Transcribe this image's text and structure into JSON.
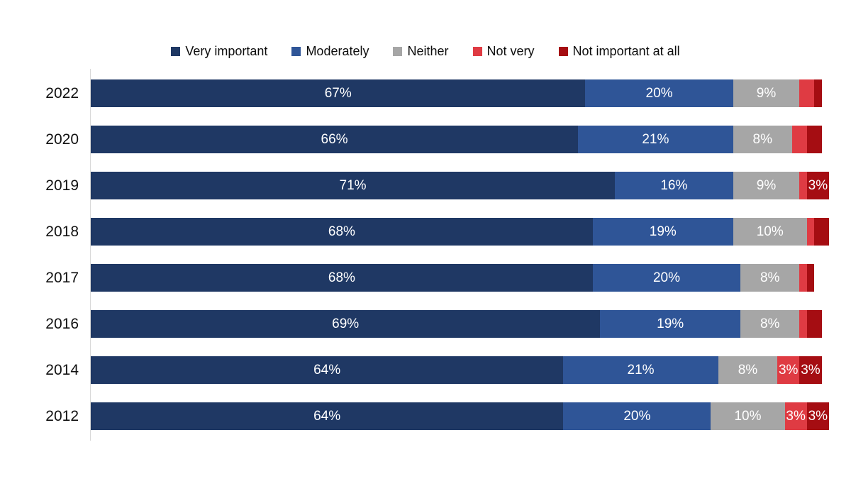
{
  "chart_data": {
    "type": "bar",
    "variant": "horizontal-stacked-percent",
    "title": "",
    "categories": [
      "2022",
      "2020",
      "2019",
      "2018",
      "2017",
      "2016",
      "2014",
      "2012"
    ],
    "series": [
      {
        "name": "Very important",
        "color": "#1F3864",
        "values": [
          67,
          66,
          71,
          68,
          68,
          69,
          64,
          64
        ]
      },
      {
        "name": "Moderately",
        "color": "#2F5597",
        "values": [
          20,
          21,
          16,
          19,
          20,
          19,
          21,
          20
        ]
      },
      {
        "name": "Neither",
        "color": "#A6A6A6",
        "values": [
          9,
          8,
          9,
          10,
          8,
          8,
          8,
          10
        ]
      },
      {
        "name": "Not very",
        "color": "#DF3B43",
        "values": [
          2,
          2,
          1,
          1,
          1,
          1,
          3,
          3
        ]
      },
      {
        "name": "Not important at all",
        "color": "#A50D12",
        "values": [
          1,
          2,
          3,
          2,
          1,
          2,
          3,
          3
        ]
      }
    ],
    "value_suffix": "%",
    "data_label_min": 3,
    "data_label_color": "#FFFFFF",
    "xlim": [
      0,
      100
    ],
    "legend_position": "top",
    "grid": false,
    "axis_line_color": "#D9D9D9"
  }
}
